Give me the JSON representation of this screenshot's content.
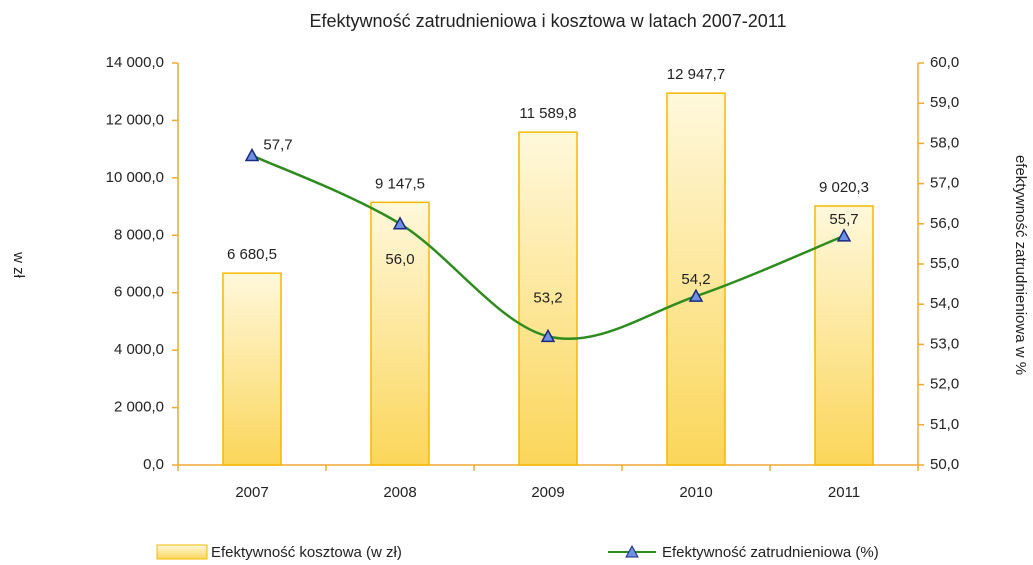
{
  "chart_data": {
    "type": "bar-line",
    "title": "Efektywność zatrudnieniowa i kosztowa w latach 2007-2011",
    "ylabel": "w zł",
    "y2label": "efektywność zatrudnieniowa w %",
    "categories": [
      "2007",
      "2008",
      "2009",
      "2010",
      "2011"
    ],
    "series": [
      {
        "name": "Efektywność kosztowa (w zł)",
        "type": "bar",
        "color": "#f5b800",
        "values": [
          6680.5,
          9147.5,
          11589.8,
          12947.7,
          9020.3
        ],
        "value_labels": [
          "6 680,5",
          "9 147,5",
          "11 589,8",
          "12 947,7",
          "9 020,3"
        ]
      },
      {
        "name": "Efektywność zatrudnieniowa (%)",
        "type": "line",
        "axis": "y2",
        "color": "#2e8b1e",
        "values": [
          57.7,
          56.0,
          53.2,
          54.2,
          55.7
        ],
        "value_labels": [
          "57,7",
          "56,0",
          "53,2",
          "54,2",
          "55,7"
        ]
      }
    ],
    "ylim": [
      0,
      14000
    ],
    "yticks": [
      {
        "value": 0,
        "label": "0,0"
      },
      {
        "value": 2000,
        "label": "2 000,0"
      },
      {
        "value": 4000,
        "label": "4 000,0"
      },
      {
        "value": 6000,
        "label": "6 000,0"
      },
      {
        "value": 8000,
        "label": "8 000,0"
      },
      {
        "value": 10000,
        "label": "10 000,0"
      },
      {
        "value": 12000,
        "label": "12 000,0"
      },
      {
        "value": 14000,
        "label": "14 000,0"
      }
    ],
    "y2lim": [
      50,
      60
    ],
    "y2ticks": [
      {
        "value": 50,
        "label": "50,0"
      },
      {
        "value": 51,
        "label": "51,0"
      },
      {
        "value": 52,
        "label": "52,0"
      },
      {
        "value": 53,
        "label": "53,0"
      },
      {
        "value": 54,
        "label": "54,0"
      },
      {
        "value": 55,
        "label": "55,0"
      },
      {
        "value": 56,
        "label": "56,0"
      },
      {
        "value": 57,
        "label": "57,0"
      },
      {
        "value": 58,
        "label": "58,0"
      },
      {
        "value": 59,
        "label": "59,0"
      },
      {
        "value": 60,
        "label": "60,0"
      }
    ],
    "legend": "bottom"
  }
}
